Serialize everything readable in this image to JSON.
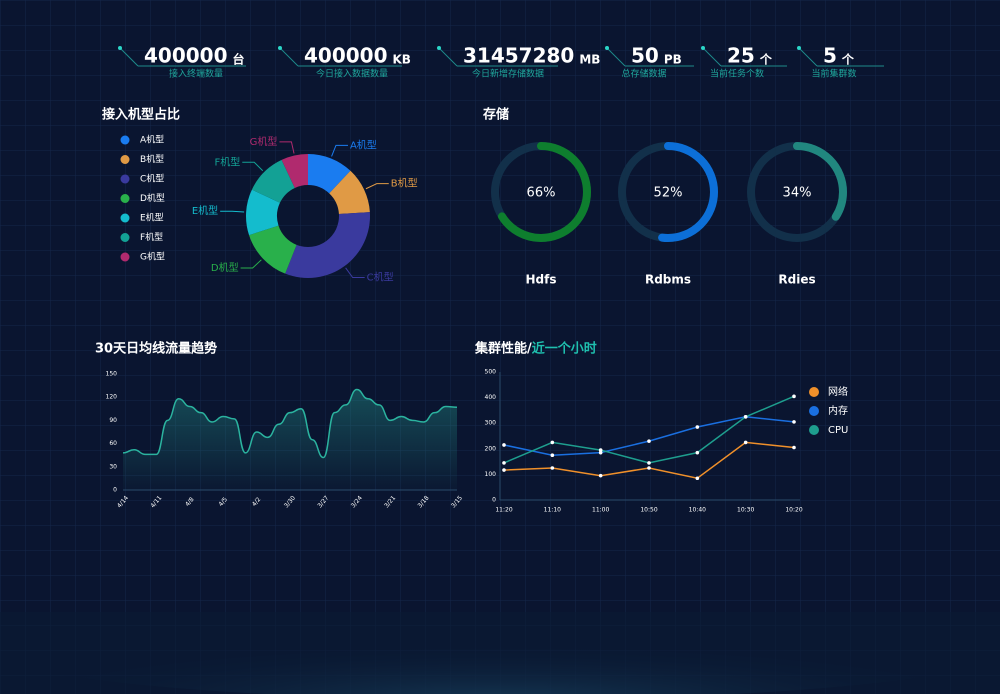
{
  "stats": [
    {
      "value": 400000,
      "unit": "台",
      "label": "接入终端数量"
    },
    {
      "value": 400000,
      "unit": "KB",
      "label": "今日接入数据数量"
    },
    {
      "value": 31457280,
      "unit": "MB",
      "label": "今日新增存储数据"
    },
    {
      "value": 50,
      "unit": "PB",
      "label": "总存储数据"
    },
    {
      "value": 25,
      "unit": "个",
      "label": "当前任务个数"
    },
    {
      "value": 5,
      "unit": "个",
      "label": "当前集群数"
    }
  ],
  "chart_data": [
    {
      "type": "pie",
      "title": "接入机型占比",
      "categories": [
        "A机型",
        "B机型",
        "C机型",
        "D机型",
        "E机型",
        "F机型",
        "G机型"
      ],
      "values": [
        12,
        12,
        32,
        14,
        12,
        11,
        7
      ],
      "colors": [
        "#1a7cf0",
        "#e09a45",
        "#3a3a9e",
        "#29b04b",
        "#14bccd",
        "#13a195",
        "#b02a6e"
      ]
    },
    {
      "type": "ring",
      "title": "存储",
      "categories": [
        "Hdfs",
        "Rdbms",
        "Rdies"
      ],
      "values": [
        66,
        52,
        34
      ],
      "value_labels": [
        "66%",
        "52%",
        "34%"
      ],
      "colors": [
        "#0e7e2e",
        "#0c6fd8",
        "#21877f"
      ]
    },
    {
      "type": "area",
      "title": "30天日均线流量趋势",
      "color": "#2bb39f",
      "categories": [
        "4/14",
        null,
        null,
        "4/11",
        null,
        null,
        "4/8",
        null,
        null,
        "4/5",
        null,
        null,
        "4/2",
        null,
        null,
        "3/30",
        null,
        null,
        "3/27",
        null,
        null,
        "3/24",
        null,
        null,
        "3/21",
        null,
        null,
        "3/18",
        null,
        null,
        "3/15"
      ],
      "values": [
        48,
        52,
        46,
        46,
        90,
        118,
        108,
        100,
        88,
        95,
        92,
        48,
        75,
        68,
        85,
        100,
        105,
        65,
        42,
        100,
        110,
        130,
        118,
        110,
        90,
        95,
        90,
        88,
        100,
        108,
        107
      ],
      "ylim": [
        0,
        150
      ],
      "yticks": [
        0,
        30,
        60,
        90,
        120,
        150
      ]
    },
    {
      "type": "line",
      "title": "集群性能/",
      "subtitle": "近一个小时",
      "legend": "right",
      "categories": [
        "11:20",
        "11:10",
        "11:00",
        "10:50",
        "10:40",
        "10:30",
        "10:20"
      ],
      "series": [
        {
          "name": "网络",
          "color": "#f0902a",
          "values": [
            117,
            125,
            95,
            125,
            85,
            225,
            205
          ]
        },
        {
          "name": "内存",
          "color": "#1a6fe0",
          "values": [
            215,
            175,
            185,
            230,
            285,
            325,
            305
          ]
        },
        {
          "name": "CPU",
          "color": "#1e9e8e",
          "values": [
            145,
            225,
            195,
            145,
            185,
            325,
            405
          ]
        }
      ],
      "ylim": [
        0,
        500
      ],
      "yticks": [
        0,
        100,
        200,
        300,
        400,
        500
      ]
    }
  ]
}
